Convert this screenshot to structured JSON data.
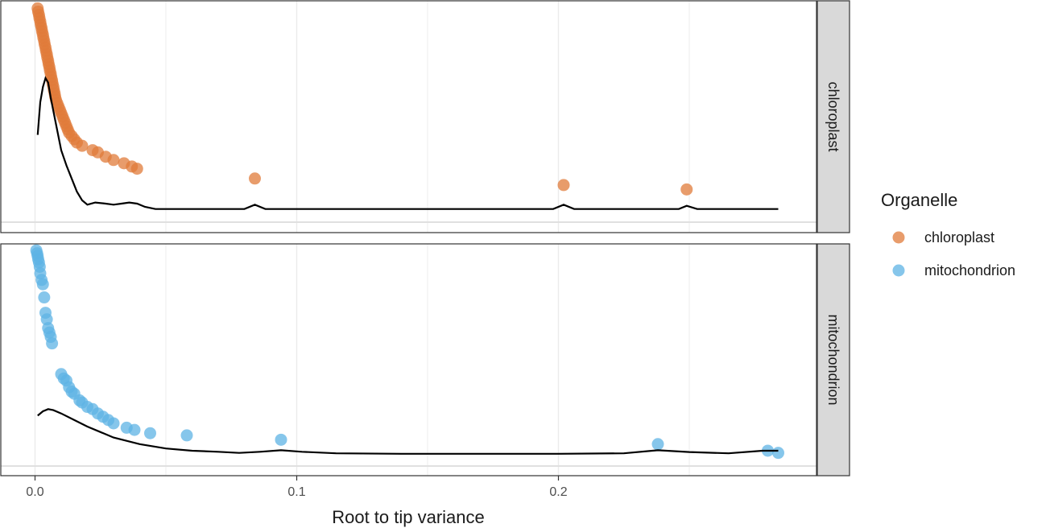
{
  "chart_data": {
    "type": "scatter",
    "xlabel": "Root to tip variance",
    "ylabel": "",
    "xlim": [
      -0.008,
      0.29
    ],
    "x_ticks": [
      0.0,
      0.1,
      0.2
    ],
    "x_tick_labels": [
      "0.0",
      "0.1",
      "0.2"
    ],
    "grid": true,
    "legend": {
      "title": "Organelle",
      "placement": "right",
      "entries": [
        "chloroplast",
        "mitochondrion"
      ]
    },
    "colors": {
      "chloroplast": "#E07B39",
      "mitochondrion": "#5DB3E4"
    },
    "facets": [
      {
        "label": "chloroplast",
        "color": "#E07B39",
        "ylim": [
          0,
          1
        ],
        "points": [
          [
            0.001,
            0.98
          ],
          [
            0.0012,
            0.965
          ],
          [
            0.0015,
            0.95
          ],
          [
            0.0017,
            0.935
          ],
          [
            0.002,
            0.92
          ],
          [
            0.0022,
            0.905
          ],
          [
            0.0025,
            0.89
          ],
          [
            0.0027,
            0.875
          ],
          [
            0.003,
            0.86
          ],
          [
            0.0032,
            0.845
          ],
          [
            0.0035,
            0.83
          ],
          [
            0.0037,
            0.815
          ],
          [
            0.004,
            0.8
          ],
          [
            0.0042,
            0.785
          ],
          [
            0.0045,
            0.77
          ],
          [
            0.0047,
            0.755
          ],
          [
            0.005,
            0.74
          ],
          [
            0.0052,
            0.725
          ],
          [
            0.0055,
            0.71
          ],
          [
            0.0057,
            0.695
          ],
          [
            0.006,
            0.68
          ],
          [
            0.0062,
            0.665
          ],
          [
            0.0065,
            0.65
          ],
          [
            0.0067,
            0.635
          ],
          [
            0.007,
            0.62
          ],
          [
            0.0072,
            0.605
          ],
          [
            0.0075,
            0.59
          ],
          [
            0.0077,
            0.575
          ],
          [
            0.008,
            0.56
          ],
          [
            0.0085,
            0.545
          ],
          [
            0.009,
            0.53
          ],
          [
            0.0095,
            0.515
          ],
          [
            0.01,
            0.5
          ],
          [
            0.0105,
            0.485
          ],
          [
            0.011,
            0.47
          ],
          [
            0.0115,
            0.455
          ],
          [
            0.012,
            0.44
          ],
          [
            0.0125,
            0.425
          ],
          [
            0.013,
            0.41
          ],
          [
            0.014,
            0.395
          ],
          [
            0.015,
            0.38
          ],
          [
            0.016,
            0.365
          ],
          [
            0.018,
            0.35
          ],
          [
            0.022,
            0.33
          ],
          [
            0.024,
            0.32
          ],
          [
            0.027,
            0.3
          ],
          [
            0.03,
            0.285
          ],
          [
            0.034,
            0.27
          ],
          [
            0.037,
            0.255
          ],
          [
            0.039,
            0.245
          ],
          [
            0.084,
            0.2
          ],
          [
            0.202,
            0.17
          ],
          [
            0.249,
            0.15
          ]
        ],
        "density": [
          [
            0.001,
            0.4
          ],
          [
            0.002,
            0.55
          ],
          [
            0.003,
            0.62
          ],
          [
            0.004,
            0.66
          ],
          [
            0.005,
            0.64
          ],
          [
            0.006,
            0.57
          ],
          [
            0.008,
            0.45
          ],
          [
            0.01,
            0.33
          ],
          [
            0.012,
            0.26
          ],
          [
            0.014,
            0.2
          ],
          [
            0.016,
            0.14
          ],
          [
            0.018,
            0.1
          ],
          [
            0.02,
            0.08
          ],
          [
            0.023,
            0.09
          ],
          [
            0.027,
            0.085
          ],
          [
            0.03,
            0.08
          ],
          [
            0.033,
            0.085
          ],
          [
            0.036,
            0.09
          ],
          [
            0.039,
            0.085
          ],
          [
            0.042,
            0.07
          ],
          [
            0.046,
            0.06
          ],
          [
            0.06,
            0.06
          ],
          [
            0.08,
            0.06
          ],
          [
            0.084,
            0.08
          ],
          [
            0.088,
            0.06
          ],
          [
            0.12,
            0.06
          ],
          [
            0.18,
            0.06
          ],
          [
            0.198,
            0.06
          ],
          [
            0.202,
            0.08
          ],
          [
            0.206,
            0.06
          ],
          [
            0.24,
            0.06
          ],
          [
            0.246,
            0.06
          ],
          [
            0.249,
            0.075
          ],
          [
            0.253,
            0.06
          ],
          [
            0.284,
            0.06
          ]
        ]
      },
      {
        "label": "mitochondrion",
        "color": "#5DB3E4",
        "ylim": [
          0,
          1
        ],
        "points": [
          [
            0.0005,
            0.985
          ],
          [
            0.0008,
            0.972
          ],
          [
            0.001,
            0.96
          ],
          [
            0.0012,
            0.945
          ],
          [
            0.0015,
            0.93
          ],
          [
            0.0018,
            0.91
          ],
          [
            0.002,
            0.88
          ],
          [
            0.0025,
            0.85
          ],
          [
            0.003,
            0.83
          ],
          [
            0.0035,
            0.77
          ],
          [
            0.004,
            0.7
          ],
          [
            0.0045,
            0.67
          ],
          [
            0.005,
            0.63
          ],
          [
            0.0055,
            0.61
          ],
          [
            0.006,
            0.59
          ],
          [
            0.0065,
            0.56
          ],
          [
            0.01,
            0.42
          ],
          [
            0.011,
            0.4
          ],
          [
            0.012,
            0.39
          ],
          [
            0.013,
            0.36
          ],
          [
            0.014,
            0.34
          ],
          [
            0.015,
            0.33
          ],
          [
            0.017,
            0.3
          ],
          [
            0.018,
            0.29
          ],
          [
            0.02,
            0.27
          ],
          [
            0.022,
            0.26
          ],
          [
            0.024,
            0.24
          ],
          [
            0.026,
            0.225
          ],
          [
            0.028,
            0.21
          ],
          [
            0.03,
            0.195
          ],
          [
            0.035,
            0.175
          ],
          [
            0.038,
            0.165
          ],
          [
            0.044,
            0.15
          ],
          [
            0.058,
            0.14
          ],
          [
            0.094,
            0.12
          ],
          [
            0.238,
            0.1
          ],
          [
            0.28,
            0.07
          ],
          [
            0.284,
            0.06
          ]
        ],
        "density": [
          [
            0.001,
            0.23
          ],
          [
            0.003,
            0.25
          ],
          [
            0.005,
            0.26
          ],
          [
            0.007,
            0.255
          ],
          [
            0.01,
            0.24
          ],
          [
            0.015,
            0.21
          ],
          [
            0.02,
            0.18
          ],
          [
            0.025,
            0.155
          ],
          [
            0.03,
            0.13
          ],
          [
            0.04,
            0.1
          ],
          [
            0.05,
            0.08
          ],
          [
            0.06,
            0.07
          ],
          [
            0.07,
            0.065
          ],
          [
            0.078,
            0.06
          ],
          [
            0.086,
            0.065
          ],
          [
            0.094,
            0.072
          ],
          [
            0.102,
            0.065
          ],
          [
            0.115,
            0.058
          ],
          [
            0.14,
            0.056
          ],
          [
            0.2,
            0.056
          ],
          [
            0.225,
            0.058
          ],
          [
            0.238,
            0.072
          ],
          [
            0.25,
            0.064
          ],
          [
            0.265,
            0.058
          ],
          [
            0.278,
            0.07
          ],
          [
            0.284,
            0.07
          ]
        ]
      }
    ]
  }
}
